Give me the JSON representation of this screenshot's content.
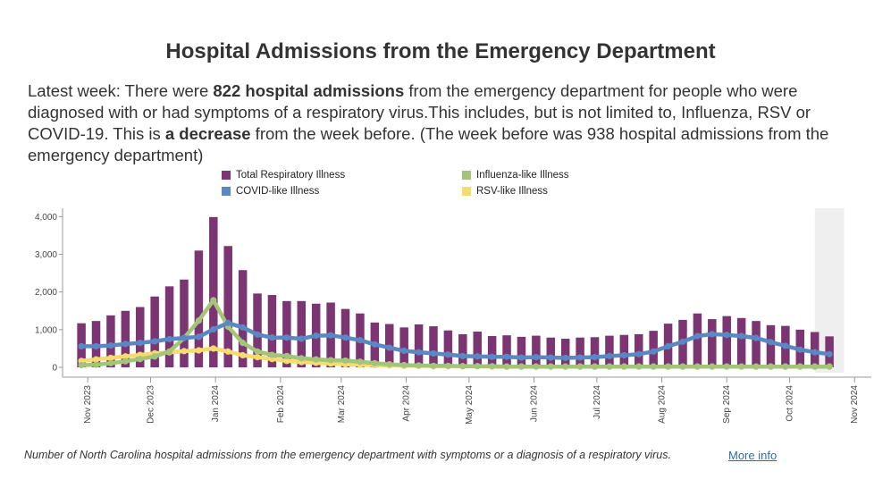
{
  "title": "Hospital Admissions from the Emergency Department",
  "summary": {
    "p1": "Latest week: There were ",
    "b1": "822 hospital admissions",
    "p2": " from the emergency department for people who were diagnosed with or had symptoms of a respiratory virus.This includes, but is not limited to, Influenza, RSV or COVID-19. This is ",
    "b2": "a decrease",
    "p3": " from the week before. (The week before was 938 hospital admissions from the emergency department)"
  },
  "footer": {
    "note": "Number of North Carolina hospital admissions from the emergency department with symptoms or a diagnosis of a respiratory virus.",
    "link": "More info"
  },
  "colors": {
    "total": "#7b3573",
    "covid": "#5b88c3",
    "flu": "#a3c57a",
    "rsv": "#f5dc6c"
  },
  "chart_data": {
    "type": "bar",
    "legend_placement": "top",
    "ylim": [
      0,
      4200
    ],
    "yticks": [
      0,
      1000,
      2000,
      3000,
      4000
    ],
    "ytick_labels": [
      "0",
      "1,000",
      "2,000",
      "3,000",
      "4,000"
    ],
    "x_start": "2023-10-20",
    "x_end": "2024-11-09",
    "month_ticks": [
      {
        "label": "Nov 2023",
        "date": "2023-11-01"
      },
      {
        "label": "Dec 2023",
        "date": "2023-12-01"
      },
      {
        "label": "Jan 2024",
        "date": "2024-01-01"
      },
      {
        "label": "Feb 2024",
        "date": "2024-02-01"
      },
      {
        "label": "Mar 2024",
        "date": "2024-03-01"
      },
      {
        "label": "Apr 2024",
        "date": "2024-04-01"
      },
      {
        "label": "May 2024",
        "date": "2024-05-01"
      },
      {
        "label": "Jun 2024",
        "date": "2024-06-01"
      },
      {
        "label": "Jul 2024",
        "date": "2024-07-01"
      },
      {
        "label": "Aug 2024",
        "date": "2024-08-01"
      },
      {
        "label": "Sep 2024",
        "date": "2024-09-01"
      },
      {
        "label": "Oct 2024",
        "date": "2024-10-01"
      },
      {
        "label": "Nov 2024",
        "date": "2024-11-01"
      }
    ],
    "first_week": "2023-10-29",
    "week_interval_days": 7,
    "shaded_period": [
      "2024-10-13",
      "2024-10-27"
    ],
    "series": [
      {
        "name": "Total Respiratory Illness",
        "kind": "bar",
        "values": [
          1170,
          1230,
          1380,
          1500,
          1600,
          1880,
          2150,
          2330,
          3100,
          3990,
          3220,
          2580,
          1960,
          1920,
          1760,
          1760,
          1690,
          1720,
          1550,
          1430,
          1190,
          1150,
          1060,
          1140,
          1090,
          980,
          880,
          950,
          830,
          850,
          810,
          840,
          790,
          760,
          790,
          800,
          840,
          860,
          880,
          970,
          1160,
          1260,
          1430,
          1280,
          1360,
          1310,
          1230,
          1120,
          1100,
          1000,
          938,
          822
        ]
      },
      {
        "name": "COVID-like Illness",
        "kind": "line",
        "values": [
          560,
          560,
          580,
          620,
          650,
          690,
          750,
          780,
          810,
          1010,
          1180,
          1060,
          870,
          790,
          790,
          760,
          840,
          850,
          790,
          720,
          610,
          520,
          440,
          400,
          370,
          340,
          300,
          290,
          280,
          280,
          260,
          270,
          260,
          250,
          260,
          270,
          300,
          320,
          350,
          420,
          560,
          680,
          830,
          880,
          860,
          830,
          780,
          670,
          570,
          470,
          400,
          350
        ]
      },
      {
        "name": "Influenza-like Illness",
        "kind": "line",
        "values": [
          60,
          70,
          110,
          160,
          220,
          290,
          420,
          780,
          1240,
          1780,
          1080,
          650,
          420,
          330,
          300,
          240,
          210,
          190,
          180,
          150,
          110,
          80,
          60,
          50,
          40,
          40,
          30,
          30,
          30,
          20,
          20,
          20,
          20,
          20,
          20,
          20,
          20,
          20,
          20,
          20,
          20,
          20,
          20,
          20,
          20,
          20,
          20,
          20,
          20,
          20,
          20,
          20
        ]
      },
      {
        "name": "RSV-like Illness",
        "kind": "line",
        "values": [
          170,
          210,
          250,
          290,
          330,
          370,
          400,
          430,
          450,
          500,
          420,
          320,
          270,
          220,
          170,
          140,
          120,
          100,
          80,
          70,
          60,
          50,
          40,
          40,
          30,
          30,
          30,
          30,
          20,
          20,
          20,
          20,
          20,
          20,
          20,
          20,
          20,
          20,
          20,
          20,
          20,
          20,
          20,
          20,
          20,
          20,
          20,
          20,
          20,
          20,
          20,
          20
        ]
      }
    ]
  }
}
